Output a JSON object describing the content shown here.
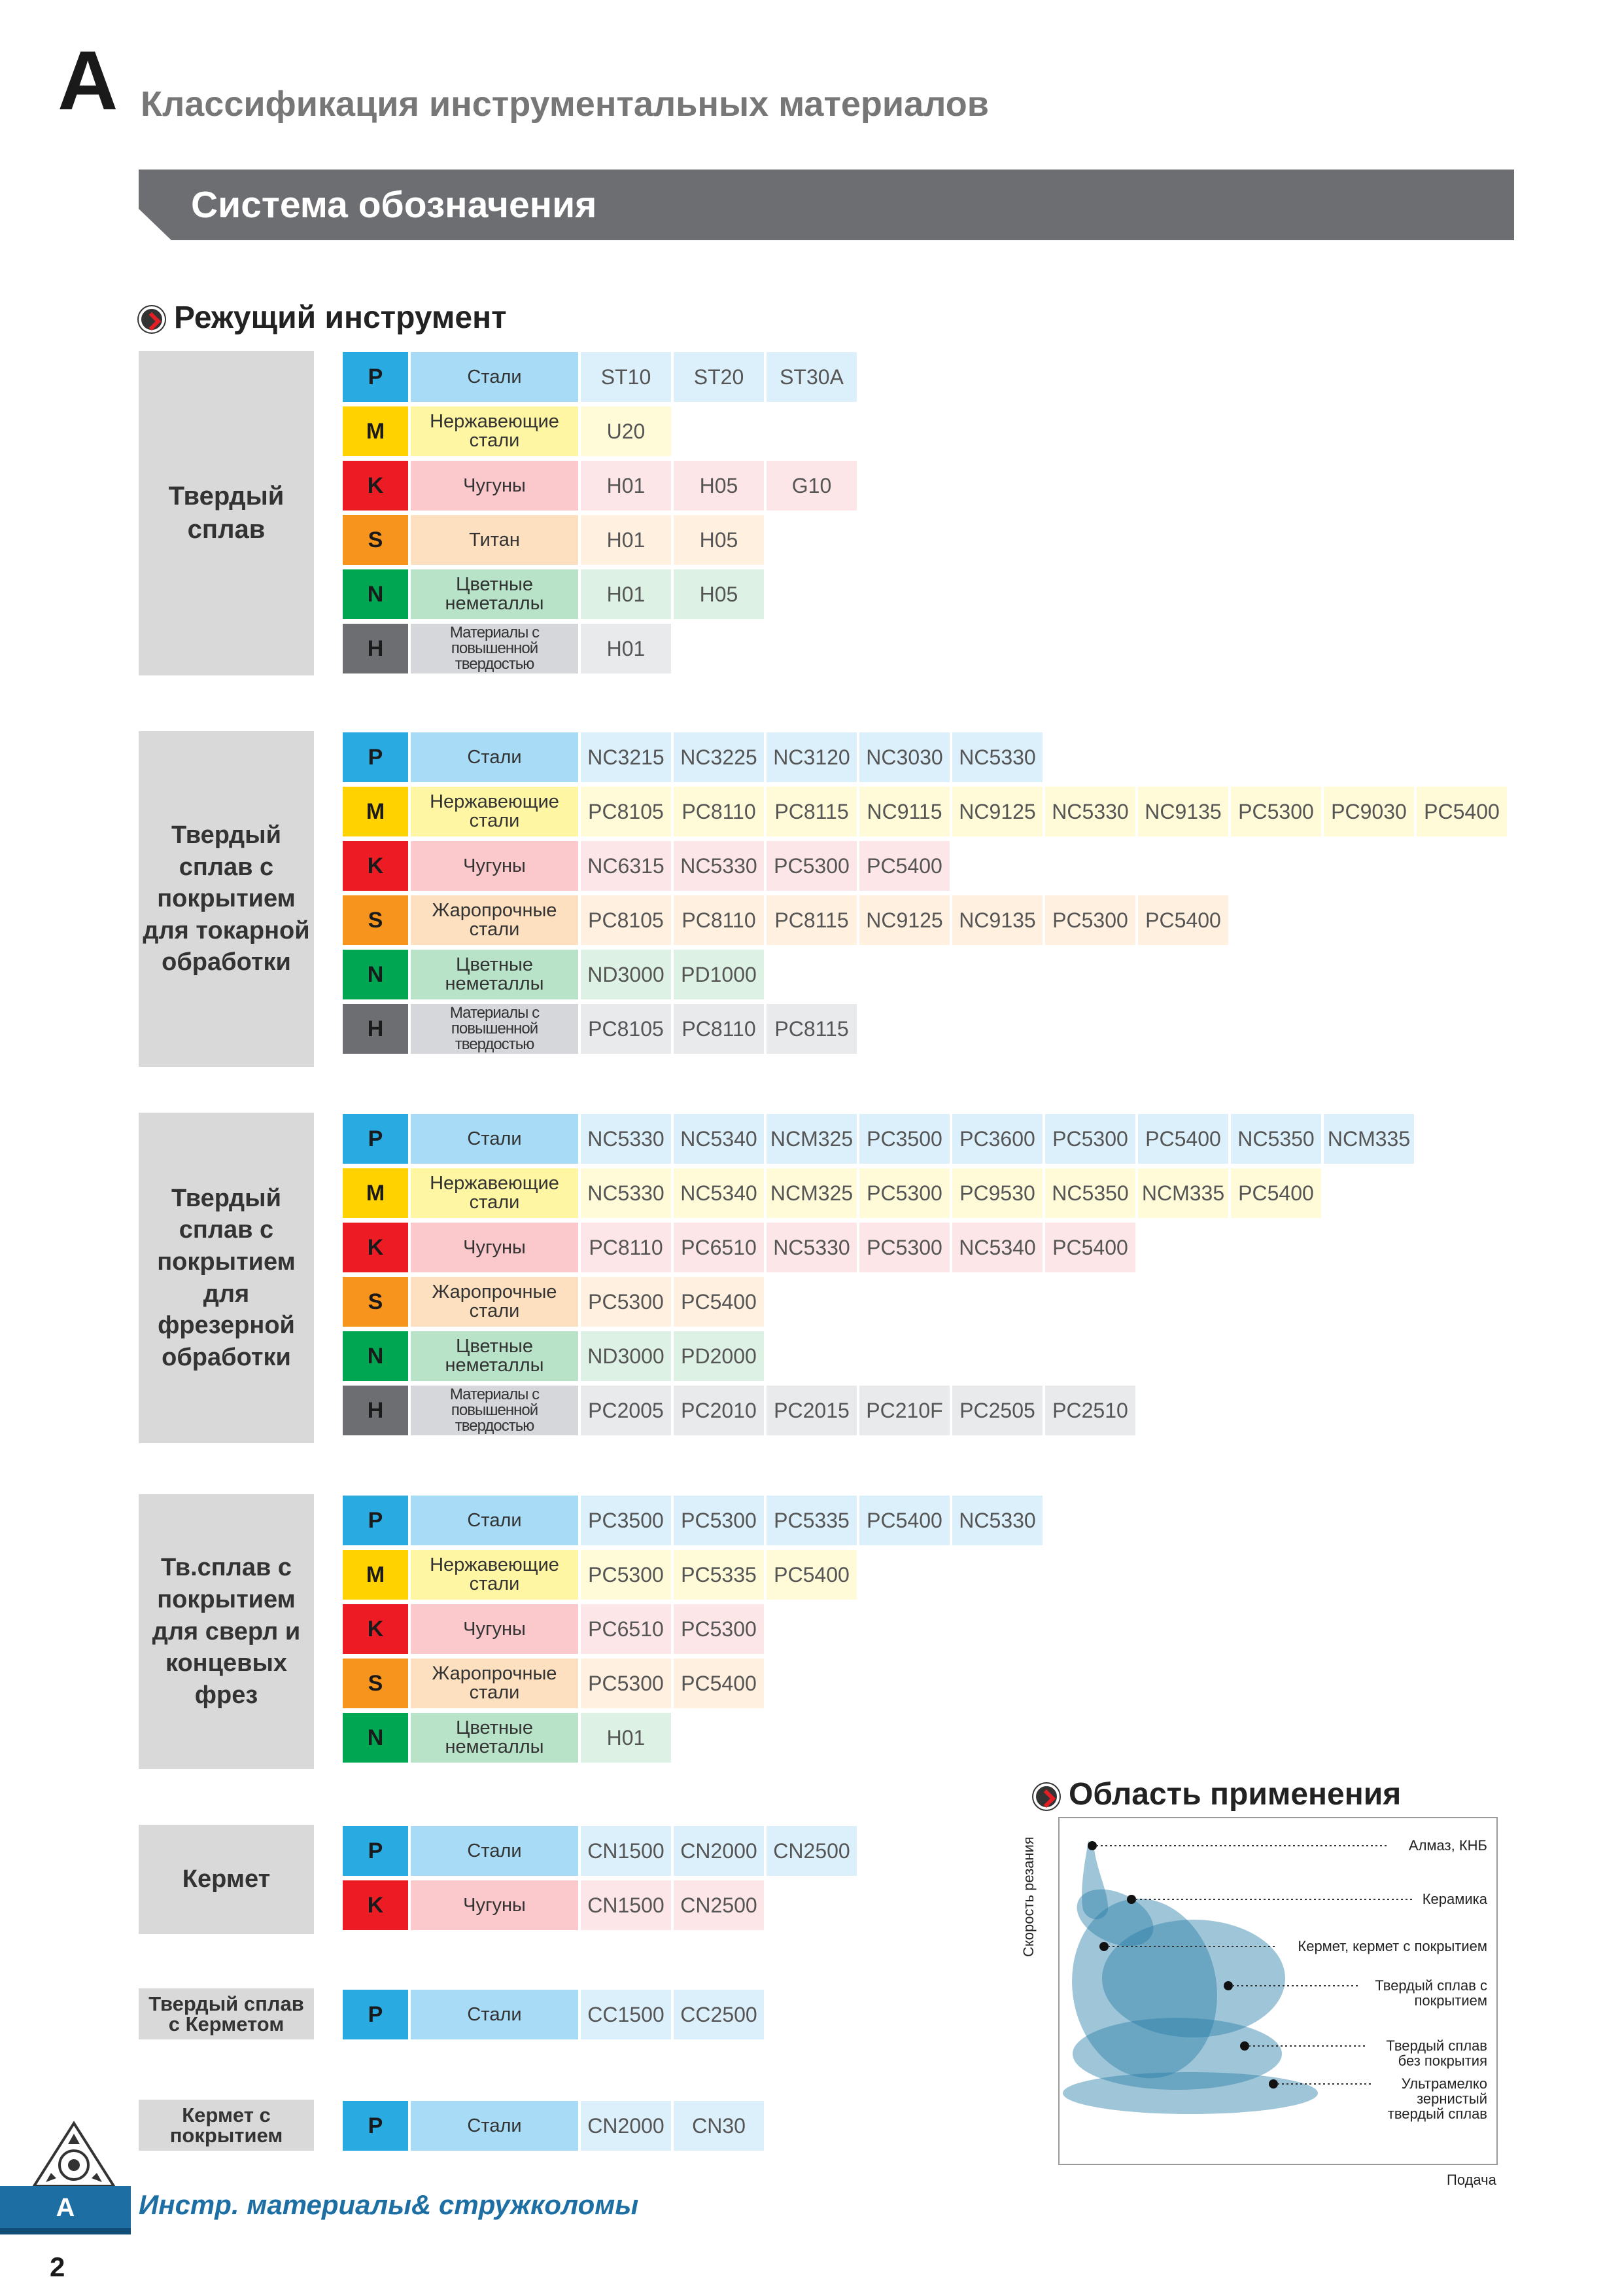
{
  "header": {
    "letter": "A",
    "title": "Классификация инструментальных материалов",
    "section": "Система обозначения"
  },
  "cutting_tool_heading": "Режущий инструмент",
  "application_heading": "Область применения",
  "colors": {
    "P": "#29abe2",
    "M": "#ffd200",
    "K": "#ed1c24",
    "S": "#f7941d",
    "N": "#00a651",
    "H": "#6d6e71",
    "banner": "#6d6e71",
    "footer_blue": "#1d6ea3"
  },
  "groups": [
    {
      "title": "Твердый сплав",
      "rows": [
        {
          "code": "P",
          "material": "Стали",
          "grades": [
            "ST10",
            "ST20",
            "ST30A"
          ]
        },
        {
          "code": "M",
          "material": "Нержавеющие стали",
          "grades": [
            "U20"
          ]
        },
        {
          "code": "K",
          "material": "Чугуны",
          "grades": [
            "H01",
            "H05",
            "G10"
          ]
        },
        {
          "code": "S",
          "material": "Титан",
          "grades": [
            "H01",
            "H05"
          ]
        },
        {
          "code": "N",
          "material": "Цветные неметаллы",
          "grades": [
            "H01",
            "H05"
          ]
        },
        {
          "code": "H",
          "material": "Материалы с повышенной твердостью",
          "grades": [
            "H01"
          ]
        }
      ]
    },
    {
      "title": "Твердый сплав с покрытием для токарной обработки",
      "rows": [
        {
          "code": "P",
          "material": "Стали",
          "grades": [
            "NC3215",
            "NC3225",
            "NC3120",
            "NC3030",
            "NC5330"
          ]
        },
        {
          "code": "M",
          "material": "Нержавеющие стали",
          "grades": [
            "PC8105",
            "PC8110",
            "PC8115",
            "NC9115",
            "NC9125",
            "NC5330",
            "NC9135",
            "PC5300",
            "PC9030",
            "PC5400"
          ]
        },
        {
          "code": "K",
          "material": "Чугуны",
          "grades": [
            "NC6315",
            "NC5330",
            "PC5300",
            "PC5400"
          ]
        },
        {
          "code": "S",
          "material": "Жаропрочные стали",
          "grades": [
            "PC8105",
            "PC8110",
            "PC8115",
            "NC9125",
            "NC9135",
            "PC5300",
            "PC5400"
          ]
        },
        {
          "code": "N",
          "material": "Цветные неметаллы",
          "grades": [
            "ND3000",
            "PD1000"
          ]
        },
        {
          "code": "H",
          "material": "Материалы с повышенной твердостью",
          "grades": [
            "PC8105",
            "PC8110",
            "PC8115"
          ]
        }
      ]
    },
    {
      "title": "Твердый сплав с покрытием для фрезерной обработки",
      "rows": [
        {
          "code": "P",
          "material": "Стали",
          "grades": [
            "NC5330",
            "NC5340",
            "NCM325",
            "PC3500",
            "PC3600",
            "PC5300",
            "PC5400",
            "NC5350",
            "NCM335"
          ]
        },
        {
          "code": "M",
          "material": "Нержавеющие стали",
          "grades": [
            "NC5330",
            "NC5340",
            "NCM325",
            "PC5300",
            "PC9530",
            "NC5350",
            "NCM335",
            "PC5400"
          ]
        },
        {
          "code": "K",
          "material": "Чугуны",
          "grades": [
            "PC8110",
            "PC6510",
            "NC5330",
            "PC5300",
            "NC5340",
            "PC5400"
          ]
        },
        {
          "code": "S",
          "material": "Жаропрочные стали",
          "grades": [
            "PC5300",
            "PC5400"
          ]
        },
        {
          "code": "N",
          "material": "Цветные неметаллы",
          "grades": [
            "ND3000",
            "PD2000"
          ]
        },
        {
          "code": "H",
          "material": "Материалы с повышенной твердостью",
          "grades": [
            "PC2005",
            "PC2010",
            "PC2015",
            "PC210F",
            "PC2505",
            "PC2510"
          ]
        }
      ]
    },
    {
      "title": "Тв.сплав с покрытием для сверл и концевых фрез",
      "rows": [
        {
          "code": "P",
          "material": "Стали",
          "grades": [
            "PC3500",
            "PC5300",
            "PC5335",
            "PC5400",
            "NC5330"
          ]
        },
        {
          "code": "M",
          "material": "Нержавеющие стали",
          "grades": [
            "PC5300",
            "PC5335",
            "PC5400"
          ]
        },
        {
          "code": "K",
          "material": "Чугуны",
          "grades": [
            "PC6510",
            "PC5300"
          ]
        },
        {
          "code": "S",
          "material": "Жаропрочные стали",
          "grades": [
            "PC5300",
            "PC5400"
          ]
        },
        {
          "code": "N",
          "material": "Цветные неметаллы",
          "grades": [
            "H01"
          ]
        }
      ]
    },
    {
      "title": "Кермет",
      "rows": [
        {
          "code": "P",
          "material": "Стали",
          "grades": [
            "CN1500",
            "CN2000",
            "CN2500"
          ]
        },
        {
          "code": "K",
          "material": "Чугуны",
          "grades": [
            "CN1500",
            "CN2500"
          ]
        }
      ]
    },
    {
      "title": "Твердый сплав с Керметом",
      "rows": [
        {
          "code": "P",
          "material": "Стали",
          "grades": [
            "CC1500",
            "CC2500"
          ]
        }
      ]
    },
    {
      "title": "Кермет с покрытием",
      "rows": [
        {
          "code": "P",
          "material": "Стали",
          "grades": [
            "CN2000",
            "CN30"
          ]
        }
      ]
    }
  ],
  "application_chart": {
    "y_axis": "Скорость резания",
    "x_axis": "Подача",
    "labels": [
      "Алмаз, КНБ",
      "Керамика",
      "Кермет, кермет с покрытием",
      "Твердый сплав с покрытием",
      "Твердый сплав без покрытия",
      "Ультрамелко зернистый твердый сплав"
    ]
  },
  "footer": {
    "tab": "A",
    "title": "Инстр. материалы& стружколомы",
    "page": "2"
  }
}
